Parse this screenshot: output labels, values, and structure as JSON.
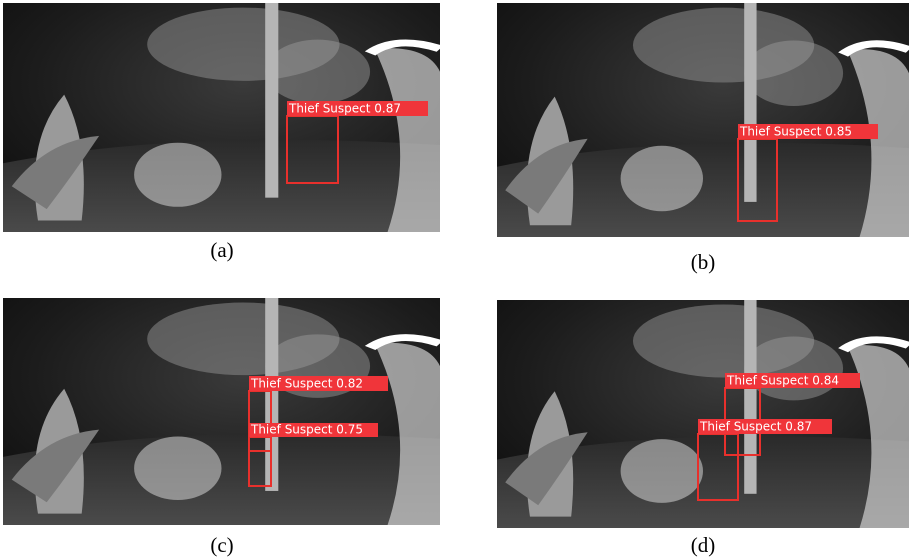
{
  "panels": [
    {
      "caption": "(a)",
      "detections": [
        "Thief Suspect 0.87"
      ]
    },
    {
      "caption": "(b)",
      "detections": [
        "Thief Suspect 0.85"
      ]
    },
    {
      "caption": "(c)",
      "detections": [
        "Thief Suspect 0.82",
        "Thief Suspect 0.75"
      ]
    },
    {
      "caption": "(d)",
      "detections": [
        "Thief Suspect 0.84",
        "Thief Suspect 0.87"
      ]
    }
  ]
}
